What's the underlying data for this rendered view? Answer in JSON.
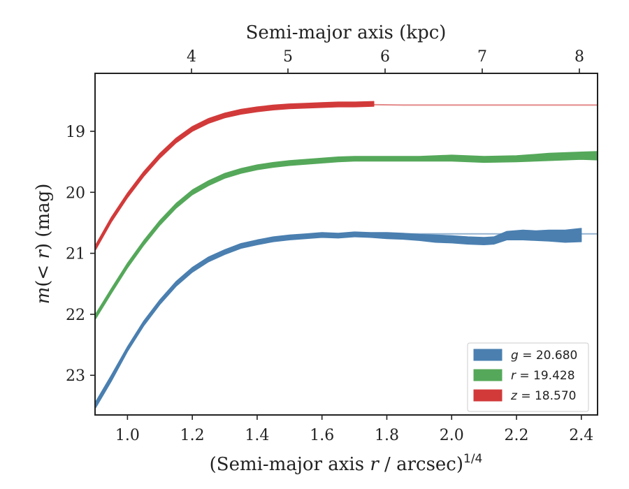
{
  "chart_data": {
    "type": "line",
    "top_axis": {
      "label": "Semi-major axis (kpc)",
      "ticks": [
        4,
        5,
        6,
        7,
        8
      ],
      "tick_labels": [
        "4",
        "5",
        "6",
        "7",
        "8"
      ]
    },
    "x_axis": {
      "label_prefix": "(Semi-major axis ",
      "label_var": "r",
      "label_mid": " / arcsec)",
      "label_sup": "1/4",
      "xlim": [
        0.9,
        2.45
      ],
      "ticks": [
        1.0,
        1.2,
        1.4,
        1.6,
        1.8,
        2.0,
        2.2,
        2.4
      ],
      "tick_labels": [
        "1.0",
        "1.2",
        "1.4",
        "1.6",
        "1.8",
        "2.0",
        "2.2",
        "2.4"
      ]
    },
    "y_axis": {
      "label_var": "m",
      "label_paren": "(< ",
      "label_r": "r",
      "label_close": ")",
      "label_unit": " (mag)",
      "ylim": [
        23.65,
        18.05
      ],
      "inverted": true,
      "ticks": [
        19,
        20,
        21,
        22,
        23
      ],
      "tick_labels": [
        "19",
        "20",
        "21",
        "22",
        "23"
      ]
    },
    "grid": false,
    "legend": {
      "position": "lower-right",
      "entries": [
        {
          "band": "g",
          "eq": " = 20.680",
          "color": "#4a7fb0"
        },
        {
          "band": "r",
          "eq": " = 19.428",
          "color": "#55a85a"
        },
        {
          "band": "z",
          "eq": " = 18.570",
          "color": "#d23a3a"
        }
      ]
    },
    "series": [
      {
        "band": "g",
        "color": "#4a7fb0",
        "total": 20.68,
        "x": [
          0.9,
          0.95,
          1.0,
          1.05,
          1.1,
          1.15,
          1.2,
          1.25,
          1.3,
          1.35,
          1.4,
          1.45,
          1.5,
          1.55,
          1.6,
          1.65,
          1.7,
          1.75,
          1.8,
          1.85,
          1.9,
          1.95,
          2.0,
          2.05,
          2.1,
          2.13,
          2.17,
          2.22,
          2.26,
          2.3,
          2.35,
          2.4
        ],
        "y": [
          23.5,
          23.05,
          22.57,
          22.15,
          21.8,
          21.5,
          21.27,
          21.1,
          20.98,
          20.88,
          20.82,
          20.77,
          20.74,
          20.72,
          20.7,
          20.71,
          20.69,
          20.7,
          20.71,
          20.72,
          20.74,
          20.76,
          20.77,
          20.79,
          20.8,
          20.79,
          20.71,
          20.7,
          20.71,
          20.71,
          20.72,
          20.7
        ],
        "err": [
          0.03,
          0.03,
          0.02,
          0.02,
          0.02,
          0.02,
          0.02,
          0.02,
          0.02,
          0.02,
          0.02,
          0.02,
          0.02,
          0.02,
          0.02,
          0.02,
          0.02,
          0.02,
          0.03,
          0.03,
          0.03,
          0.04,
          0.04,
          0.04,
          0.04,
          0.04,
          0.05,
          0.06,
          0.06,
          0.07,
          0.08,
          0.09
        ],
        "model_start": 1.7
      },
      {
        "band": "r",
        "color": "#55a85a",
        "total": 19.428,
        "x": [
          0.9,
          0.95,
          1.0,
          1.05,
          1.1,
          1.15,
          1.2,
          1.25,
          1.3,
          1.35,
          1.4,
          1.45,
          1.5,
          1.55,
          1.6,
          1.65,
          1.7,
          1.8,
          1.9,
          2.0,
          2.1,
          2.2,
          2.3,
          2.4,
          2.45
        ],
        "y": [
          22.05,
          21.62,
          21.2,
          20.83,
          20.5,
          20.22,
          20.0,
          19.85,
          19.73,
          19.65,
          19.59,
          19.55,
          19.52,
          19.5,
          19.48,
          19.46,
          19.45,
          19.45,
          19.45,
          19.44,
          19.46,
          19.45,
          19.42,
          19.4,
          19.4
        ],
        "err": [
          0.02,
          0.02,
          0.02,
          0.02,
          0.02,
          0.02,
          0.02,
          0.02,
          0.02,
          0.02,
          0.02,
          0.02,
          0.02,
          0.02,
          0.02,
          0.02,
          0.02,
          0.02,
          0.02,
          0.03,
          0.03,
          0.03,
          0.04,
          0.04,
          0.05
        ],
        "model_start": 1.7
      },
      {
        "band": "z",
        "color": "#d23a3a",
        "total": 18.57,
        "x": [
          0.9,
          0.95,
          1.0,
          1.05,
          1.1,
          1.15,
          1.2,
          1.25,
          1.3,
          1.35,
          1.4,
          1.45,
          1.5,
          1.55,
          1.6,
          1.65,
          1.7,
          1.76
        ],
        "y": [
          20.92,
          20.45,
          20.05,
          19.7,
          19.4,
          19.15,
          18.96,
          18.83,
          18.74,
          18.68,
          18.64,
          18.61,
          18.59,
          18.58,
          18.57,
          18.56,
          18.56,
          18.55
        ],
        "err": [
          0.02,
          0.02,
          0.02,
          0.02,
          0.02,
          0.02,
          0.02,
          0.02,
          0.02,
          0.02,
          0.02,
          0.02,
          0.02,
          0.02,
          0.02,
          0.02,
          0.02,
          0.02
        ],
        "model_start": 1.7
      }
    ]
  }
}
